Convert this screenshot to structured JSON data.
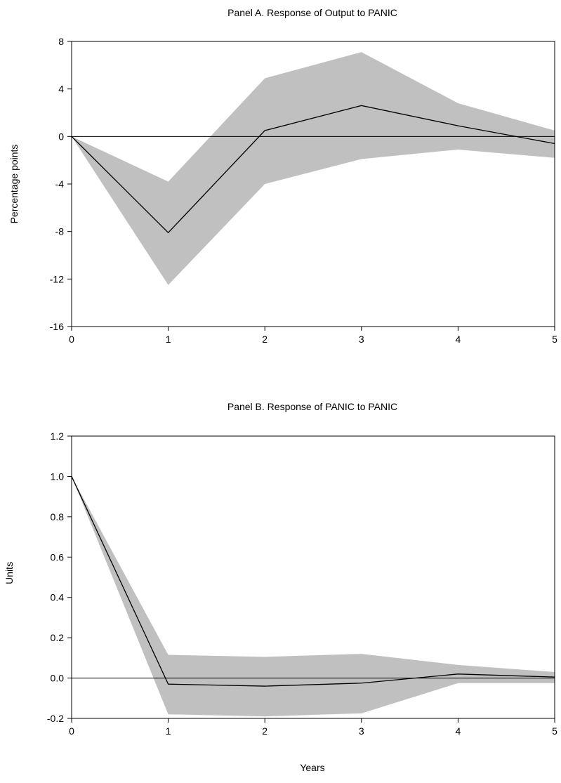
{
  "figure": {
    "xlabel": "Years"
  },
  "chart_data": [
    {
      "type": "line",
      "title": "Panel A. Response of Output to PANIC",
      "xlabel": "",
      "ylabel": "Percentage points",
      "x": [
        0,
        1,
        2,
        3,
        4,
        5
      ],
      "xlim": [
        0,
        5
      ],
      "ylim": [
        -16,
        8
      ],
      "xticks": [
        0,
        1,
        2,
        3,
        4,
        5
      ],
      "yticks": [
        -16,
        -12,
        -8,
        -4,
        0,
        4,
        8
      ],
      "ytick_labels": [
        "-16",
        "-12",
        "-8",
        "-4",
        "0",
        "4",
        "8"
      ],
      "reference_line": 0,
      "grid": false,
      "series": [
        {
          "values": [
            0,
            -8.1,
            0.5,
            2.6,
            0.9,
            -0.6
          ]
        }
      ],
      "band": {
        "lower": [
          0,
          -12.5,
          -4.0,
          -1.9,
          -1.1,
          -1.8
        ],
        "upper": [
          0,
          -3.8,
          4.9,
          7.1,
          2.8,
          0.5
        ]
      },
      "colors": {
        "line": "#000000",
        "band": "#c0c0c0",
        "axis": "#000000"
      }
    },
    {
      "type": "line",
      "title": "Panel B. Response of PANIC to PANIC",
      "xlabel": "",
      "ylabel": "Units",
      "x": [
        0,
        1,
        2,
        3,
        4,
        5
      ],
      "xlim": [
        0,
        5
      ],
      "ylim": [
        -0.2,
        1.2
      ],
      "xticks": [
        0,
        1,
        2,
        3,
        4,
        5
      ],
      "yticks": [
        -0.2,
        0.0,
        0.2,
        0.4,
        0.6,
        0.8,
        1.0,
        1.2
      ],
      "ytick_labels": [
        "-0.2",
        "0.0",
        "0.2",
        "0.4",
        "0.6",
        "0.8",
        "1.0",
        "1.2"
      ],
      "reference_line": 0,
      "grid": false,
      "series": [
        {
          "values": [
            1.0,
            -0.03,
            -0.04,
            -0.025,
            0.02,
            0.005
          ]
        }
      ],
      "band": {
        "lower": [
          1.0,
          -0.18,
          -0.19,
          -0.175,
          -0.025,
          -0.025
        ],
        "upper": [
          1.0,
          0.115,
          0.105,
          0.12,
          0.065,
          0.03
        ]
      },
      "colors": {
        "line": "#000000",
        "band": "#c0c0c0",
        "axis": "#000000"
      }
    }
  ]
}
